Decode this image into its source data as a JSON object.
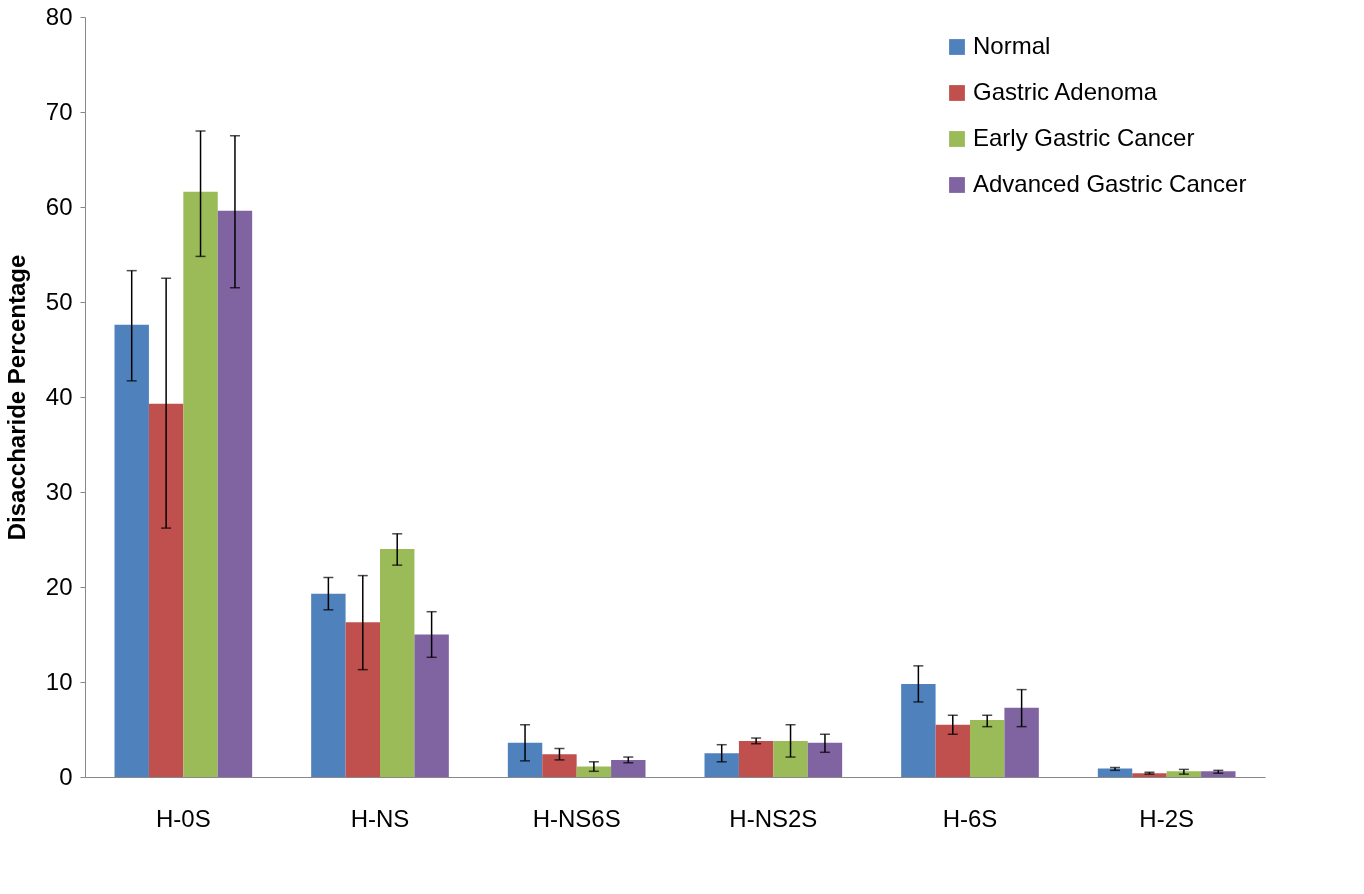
{
  "chart_data": {
    "type": "bar",
    "ylabel": "Disaccharide Percentage",
    "categories": [
      "H-0S",
      "H-NS",
      "H-NS6S",
      "H-NS2S",
      "H-6S",
      "H-2S"
    ],
    "ylim": [
      0,
      80
    ],
    "yticks": [
      0,
      10,
      20,
      30,
      40,
      50,
      60,
      70,
      80
    ],
    "grid": false,
    "legend": "top right",
    "series": [
      {
        "name": "Normal",
        "color": "#4f81bd",
        "values": [
          47.6,
          19.3,
          3.6,
          2.5,
          9.8,
          0.9
        ],
        "errors": [
          [
            41.7,
            53.3
          ],
          [
            17.6,
            21.0
          ],
          [
            1.7,
            5.5
          ],
          [
            1.6,
            3.4
          ],
          [
            7.9,
            11.7
          ],
          [
            0.7,
            1.0
          ]
        ]
      },
      {
        "name": "Gastric Adenoma",
        "color": "#c0504d",
        "values": [
          39.3,
          16.3,
          2.4,
          3.8,
          5.5,
          0.4
        ],
        "errors": [
          [
            26.2,
            52.5
          ],
          [
            11.3,
            21.2
          ],
          [
            1.8,
            3.0
          ],
          [
            3.5,
            4.1
          ],
          [
            4.5,
            6.5
          ],
          [
            0.3,
            0.5
          ]
        ]
      },
      {
        "name": "Early Gastric Cancer",
        "color": "#9bbb59",
        "values": [
          61.6,
          24.0,
          1.1,
          3.8,
          6.0,
          0.6
        ],
        "errors": [
          [
            54.8,
            68.0
          ],
          [
            22.3,
            25.6
          ],
          [
            0.6,
            1.6
          ],
          [
            2.1,
            5.5
          ],
          [
            5.3,
            6.5
          ],
          [
            0.3,
            0.8
          ]
        ]
      },
      {
        "name": "Advanced Gastric Cancer",
        "color": "#8064a2",
        "values": [
          59.6,
          15.0,
          1.8,
          3.6,
          7.3,
          0.6
        ],
        "errors": [
          [
            51.5,
            67.5
          ],
          [
            12.6,
            17.4
          ],
          [
            1.5,
            2.1
          ],
          [
            2.6,
            4.5
          ],
          [
            5.3,
            9.2
          ],
          [
            0.4,
            0.7
          ]
        ]
      }
    ]
  }
}
